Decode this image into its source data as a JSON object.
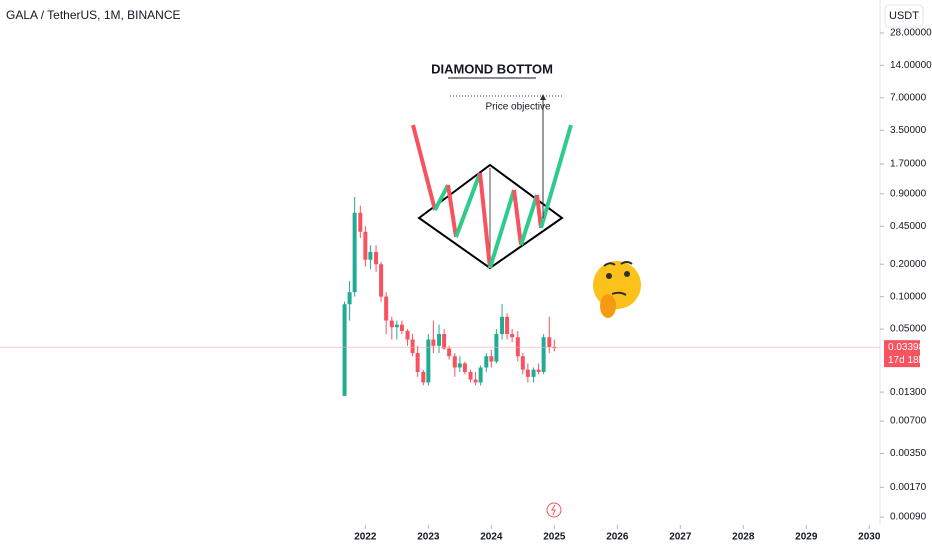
{
  "header": {
    "symbol": "GALA / TetherUS, 1M, BINANCE",
    "currency": "USDT"
  },
  "chart_data": {
    "type": "candlestick",
    "annotations": [
      "DIAMOND BOTTOM",
      "Price objective"
    ],
    "up_color": "#22ab94",
    "down_color": "#f7525f",
    "log_y": true,
    "grid": false,
    "x": [
      2021.67,
      2021.75,
      2021.83,
      2021.92,
      2022.0,
      2022.08,
      2022.17,
      2022.25,
      2022.33,
      2022.42,
      2022.5,
      2022.58,
      2022.67,
      2022.75,
      2022.83,
      2022.92,
      2023.0,
      2023.08,
      2023.17,
      2023.25,
      2023.33,
      2023.42,
      2023.5,
      2023.58,
      2023.67,
      2023.75,
      2023.83,
      2023.92,
      2024.0,
      2024.08,
      2024.17,
      2024.25,
      2024.33,
      2024.42,
      2024.5,
      2024.58,
      2024.67,
      2024.75,
      2024.83,
      2024.92,
      2025.0
    ],
    "open": [
      0.012,
      0.085,
      0.11,
      0.6,
      0.4,
      0.22,
      0.26,
      0.2,
      0.1,
      0.06,
      0.052,
      0.055,
      0.048,
      0.04,
      0.03,
      0.02,
      0.016,
      0.04,
      0.035,
      0.045,
      0.033,
      0.028,
      0.022,
      0.024,
      0.02,
      0.017,
      0.016,
      0.022,
      0.028,
      0.025,
      0.045,
      0.065,
      0.045,
      0.042,
      0.028,
      0.021,
      0.018,
      0.021,
      0.02,
      0.042,
      0.034
    ],
    "high": [
      0.09,
      0.14,
      0.84,
      0.7,
      0.45,
      0.3,
      0.3,
      0.21,
      0.11,
      0.065,
      0.06,
      0.06,
      0.05,
      0.045,
      0.035,
      0.021,
      0.045,
      0.06,
      0.055,
      0.05,
      0.035,
      0.03,
      0.028,
      0.025,
      0.021,
      0.02,
      0.023,
      0.03,
      0.032,
      0.05,
      0.085,
      0.07,
      0.05,
      0.048,
      0.03,
      0.024,
      0.022,
      0.024,
      0.045,
      0.065,
      0.04
    ],
    "low": [
      0.012,
      0.06,
      0.1,
      0.35,
      0.19,
      0.18,
      0.17,
      0.09,
      0.045,
      0.04,
      0.04,
      0.045,
      0.035,
      0.028,
      0.018,
      0.015,
      0.015,
      0.03,
      0.03,
      0.032,
      0.026,
      0.018,
      0.02,
      0.019,
      0.016,
      0.015,
      0.015,
      0.02,
      0.022,
      0.024,
      0.04,
      0.04,
      0.038,
      0.025,
      0.019,
      0.016,
      0.016,
      0.019,
      0.019,
      0.03,
      0.031
    ],
    "close": [
      0.085,
      0.11,
      0.6,
      0.4,
      0.22,
      0.26,
      0.2,
      0.1,
      0.06,
      0.052,
      0.055,
      0.048,
      0.04,
      0.03,
      0.02,
      0.016,
      0.04,
      0.035,
      0.045,
      0.033,
      0.028,
      0.022,
      0.024,
      0.02,
      0.017,
      0.016,
      0.022,
      0.028,
      0.025,
      0.045,
      0.065,
      0.045,
      0.042,
      0.028,
      0.021,
      0.018,
      0.021,
      0.02,
      0.042,
      0.034,
      0.03398
    ],
    "last_price": 0.03398,
    "countdown": "17d 18h",
    "xlim": [
      2016.2,
      2030.17
    ],
    "xticks": [
      2022,
      2023,
      2024,
      2025,
      2026,
      2027,
      2028,
      2029,
      2030
    ],
    "ylim": [
      0.00076,
      56.6
    ],
    "yticks": [
      {
        "value": 28,
        "label": "28.00000"
      },
      {
        "value": 14,
        "label": "14.00000"
      },
      {
        "value": 7,
        "label": "7.00000"
      },
      {
        "value": 3.5,
        "label": "3.50000"
      },
      {
        "value": 1.7,
        "label": "1.70000"
      },
      {
        "value": 0.9,
        "label": "0.90000"
      },
      {
        "value": 0.45,
        "label": "0.45000"
      },
      {
        "value": 0.2,
        "label": "0.20000"
      },
      {
        "value": 0.1,
        "label": "0.10000"
      },
      {
        "value": 0.05,
        "label": "0.05000"
      },
      {
        "value": 0.013,
        "label": "0.01300"
      },
      {
        "value": 0.007,
        "label": "0.00700"
      },
      {
        "value": 0.0035,
        "label": "0.00350"
      },
      {
        "value": 0.0017,
        "label": "0.00170"
      },
      {
        "value": 0.0009,
        "label": "0.00090"
      }
    ]
  }
}
